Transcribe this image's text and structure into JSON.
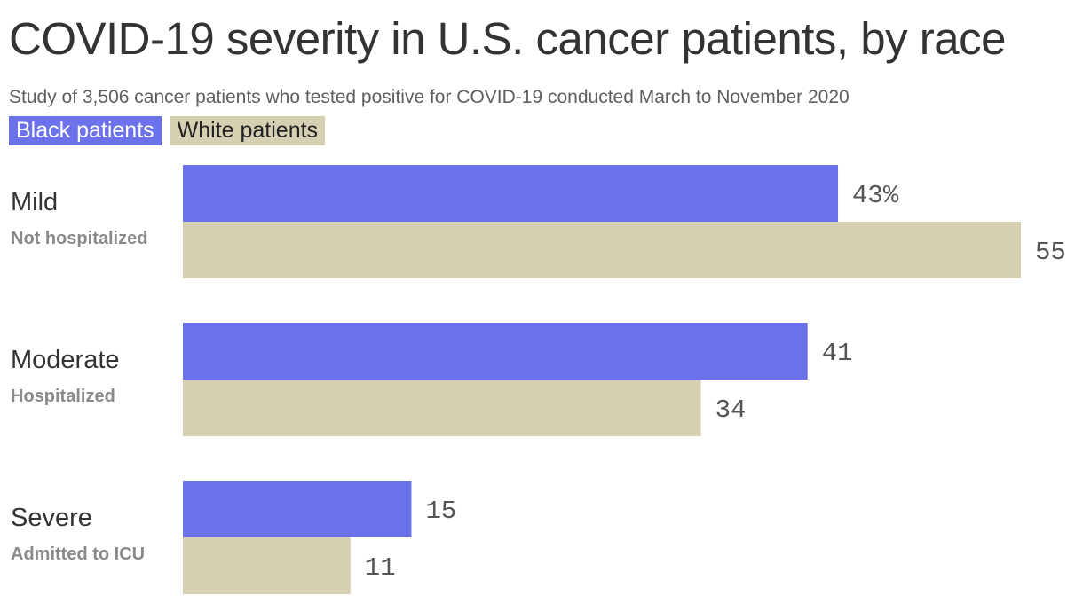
{
  "title": "COVID-19 severity in U.S. cancer patients, by race",
  "subtitle": "Study of 3,506 cancer patients who tested positive for COVID-19 conducted March to November 2020",
  "colors": {
    "black_patients": "#6c72ea",
    "white_patients": "#d6d0b2",
    "legend_black_text": "#ffffff",
    "legend_white_text": "#222222"
  },
  "legend": [
    {
      "label": "Black patients"
    },
    {
      "label": "White patients"
    }
  ],
  "categories": [
    {
      "label": "Mild",
      "sublabel": "Not hospitalized"
    },
    {
      "label": "Moderate",
      "sublabel": "Hospitalized"
    },
    {
      "label": "Severe",
      "sublabel": "Admitted to ICU"
    }
  ],
  "chart_data": {
    "type": "bar",
    "orientation": "horizontal",
    "title": "COVID-19 severity in U.S. cancer patients, by race",
    "subtitle": "Study of 3,506 cancer patients who tested positive for COVID-19 conducted March to November 2020",
    "categories": [
      "Mild",
      "Moderate",
      "Severe"
    ],
    "category_sublabels": [
      "Not hospitalized",
      "Hospitalized",
      "Admitted to ICU"
    ],
    "series": [
      {
        "name": "Black patients",
        "values": [
          43,
          41,
          15
        ],
        "labels": [
          "43%",
          "41",
          "15"
        ]
      },
      {
        "name": "White patients",
        "values": [
          55,
          34,
          11
        ],
        "labels": [
          "55",
          "34",
          "11"
        ]
      }
    ],
    "unit": "%",
    "xlim": [
      0,
      55
    ],
    "grid": false,
    "legend_position": "top-left"
  }
}
